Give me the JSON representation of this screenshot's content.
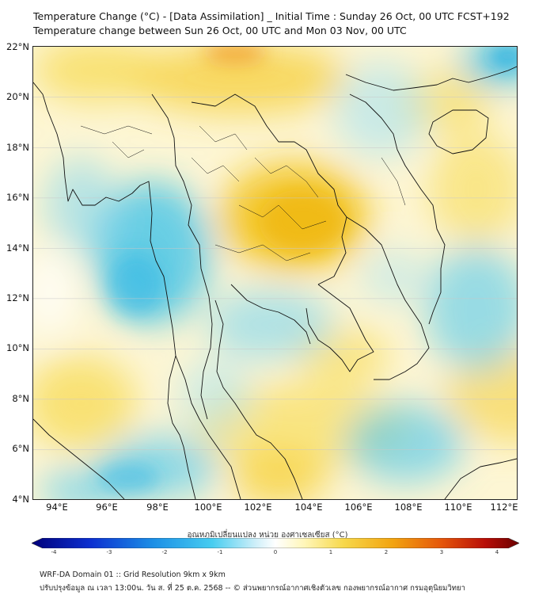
{
  "title_line1": "Temperature Change (°C) - [Data Assimilation] _ Initial Time : Sunday 26 Oct, 00 UTC FCST+192",
  "title_line2": "Temperature change between Sun 26 Oct, 00 UTC and Mon 03 Nov, 00 UTC",
  "map": {
    "lat_labels": [
      "22°N",
      "20°N",
      "18°N",
      "16°N",
      "14°N",
      "12°N",
      "10°N",
      "8°N",
      "6°N",
      "4°N"
    ],
    "lon_labels": [
      "94°E",
      "96°E",
      "98°E",
      "100°E",
      "102°E",
      "104°E",
      "106°E",
      "108°E",
      "110°E",
      "112°E"
    ],
    "lat_range": [
      4,
      22
    ],
    "lon_range": [
      93,
      112.3
    ],
    "palette": {
      "cold": "#35c0ea",
      "neutral": "#ffffff",
      "warm": "#f2c21a",
      "hot": "#e33b12"
    },
    "border_color": "#111111"
  },
  "colorbar": {
    "title": "อุณหภูมิเปลี่ยนแปลง หน่วย องศาเซลเซียส (°C)",
    "ticks": [
      "-4",
      "-3",
      "-2",
      "-1",
      "0",
      "1",
      "2",
      "3",
      "4"
    ],
    "range": [
      -4,
      4
    ],
    "colors": [
      "#00007a",
      "#0c2fd0",
      "#1b8fe6",
      "#47cdf0",
      "#cfeff9",
      "#ffffff",
      "#fff6b8",
      "#f7d84a",
      "#f2a410",
      "#e5560a",
      "#b80d07",
      "#6a0000"
    ]
  },
  "footer": {
    "line1": "WRF-DA Domain 01 :: Grid Resolution 9km x 9km",
    "line2": "ปรับปรุงข้อมูล ณ เวลา 13:00น. วัน ส. ที่ 25 ต.ค. 2568 -- © ส่วนพยากรณ์อากาศเชิงตัวเลข กองพยากรณ์อากาศ กรมอุตุนิยมวิทยา"
  }
}
